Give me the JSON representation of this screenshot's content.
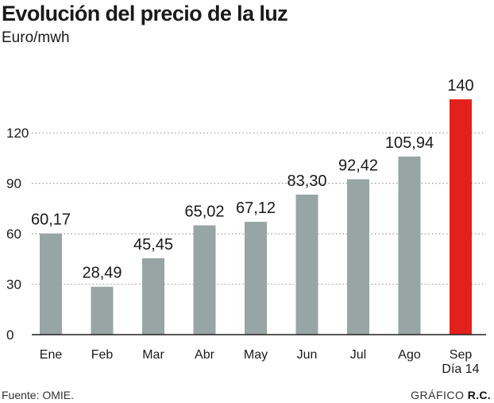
{
  "header": {
    "title": "Evolución del precio de la luz",
    "subtitle": "Euro/mwh"
  },
  "footer": {
    "source": "Fuente: OMIE.",
    "credit_prefix": "GRÁFICO",
    "credit_brand": "R.C."
  },
  "chart_data": {
    "type": "bar",
    "title": "Evolución del precio de la luz",
    "ylabel": "Euro/mwh",
    "ylim": [
      0,
      140
    ],
    "yticks": [
      0,
      30,
      60,
      90,
      120
    ],
    "grid": true,
    "categories": [
      "Ene",
      "Feb",
      "Mar",
      "Abr",
      "May",
      "Jun",
      "Jul",
      "Ago",
      "Sep"
    ],
    "category_sublabels": [
      "",
      "",
      "",
      "",
      "",
      "",
      "",
      "",
      "Día 14"
    ],
    "values": [
      60.17,
      28.49,
      45.45,
      65.02,
      67.12,
      83.3,
      92.42,
      105.94,
      140
    ],
    "value_labels": [
      "60,17",
      "28,49",
      "45,45",
      "65,02",
      "67,12",
      "83,30",
      "92,42",
      "105,94",
      "140"
    ],
    "colors": {
      "bar": "#97a5a4",
      "highlight": "#e2211c",
      "grid": "#9a9a9a",
      "axis": "#222222",
      "text": "#1a1a1a"
    },
    "highlight_index": 8
  }
}
